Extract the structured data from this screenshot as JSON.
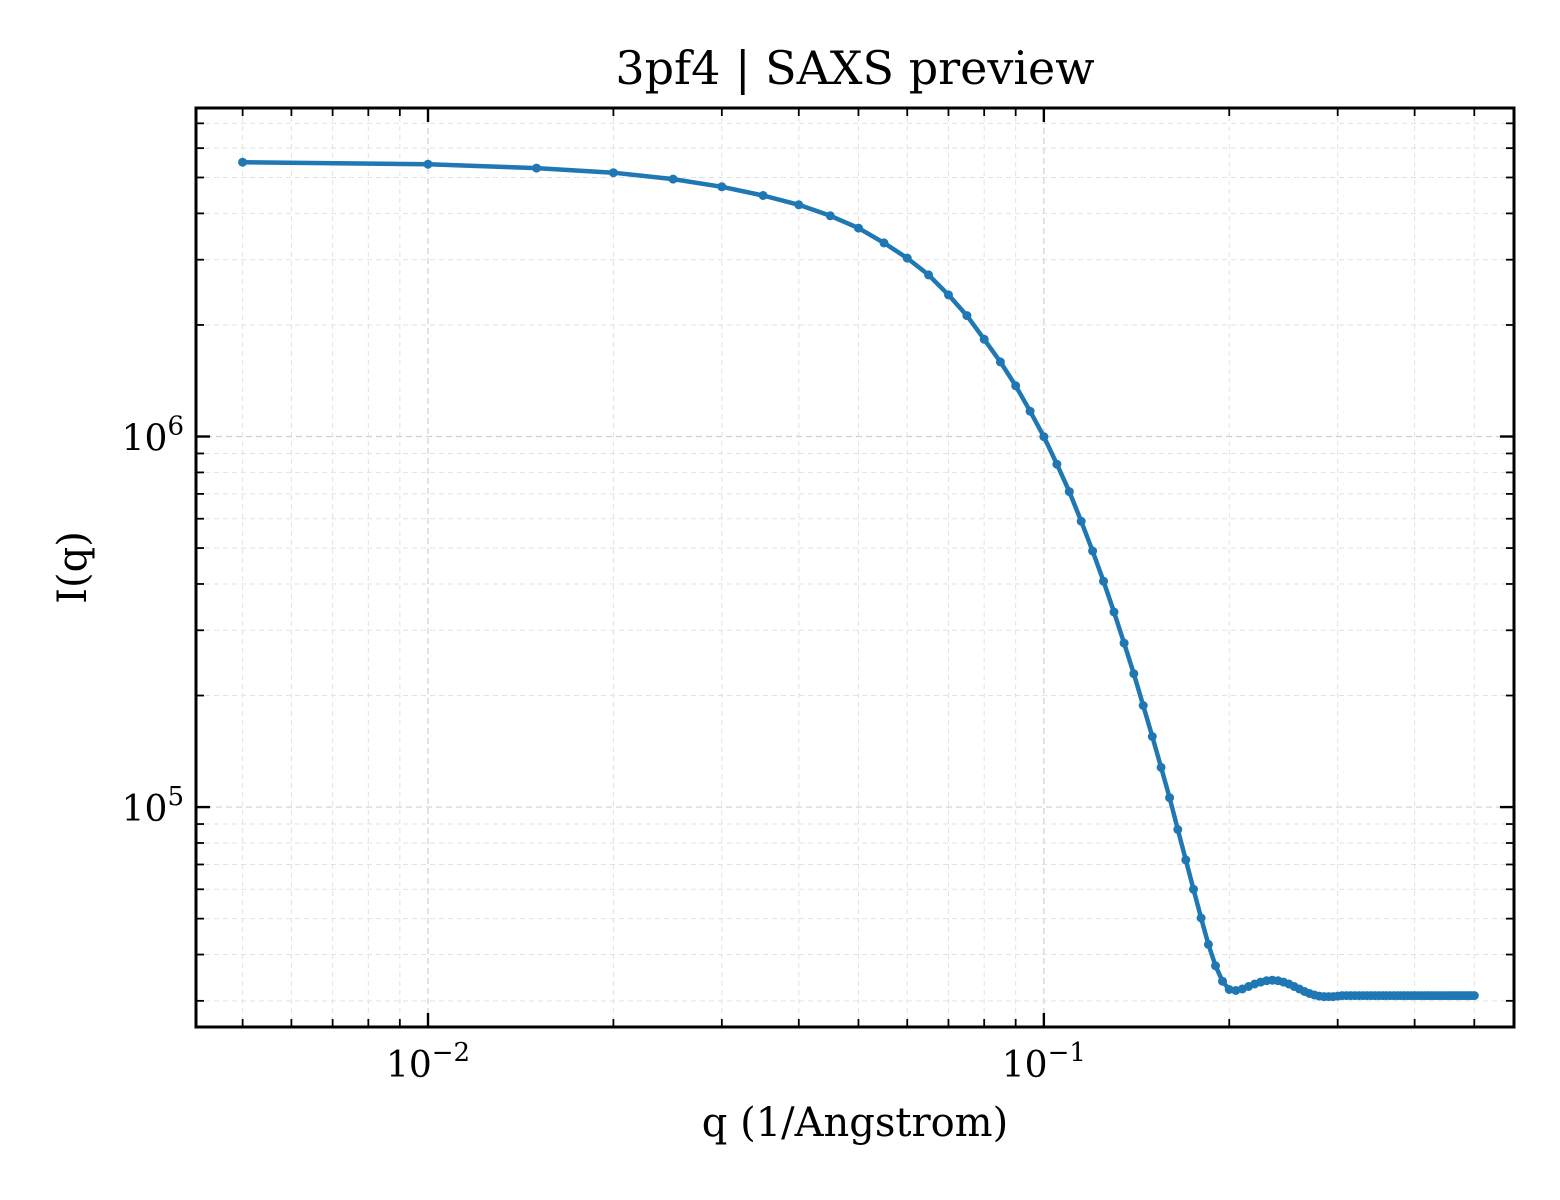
{
  "chart_data": {
    "type": "line",
    "title": "3pf4 | SAXS preview",
    "xlabel": "q (1/Angstrom)",
    "ylabel": "I(q)",
    "x_scale": "log",
    "y_scale": "log",
    "xlim": [
      0.0042,
      0.58
    ],
    "ylim": [
      25500,
      7700000
    ],
    "x_ticks": [
      {
        "value": 0.01,
        "base": "10",
        "exp": "−2"
      },
      {
        "value": 0.1,
        "base": "10",
        "exp": "−1"
      }
    ],
    "y_ticks": [
      {
        "value": 100000,
        "base": "10",
        "exp": "5"
      },
      {
        "value": 1000000,
        "base": "10",
        "exp": "6"
      }
    ],
    "grid": true,
    "legend": "none",
    "colors": {
      "series": "#1f77b4",
      "axes": "#000000",
      "grid": "#d0d0d0"
    },
    "series": [
      {
        "marker": "circle",
        "x": [
          0.005,
          0.01,
          0.015,
          0.02,
          0.025,
          0.03,
          0.035,
          0.04,
          0.045,
          0.05,
          0.055,
          0.06,
          0.065,
          0.07,
          0.075,
          0.08,
          0.085,
          0.09,
          0.095,
          0.1,
          0.105,
          0.11,
          0.115,
          0.12,
          0.125,
          0.13,
          0.135,
          0.14,
          0.145,
          0.15,
          0.155,
          0.16,
          0.165,
          0.17,
          0.175,
          0.18,
          0.185,
          0.19,
          0.195,
          0.2,
          0.205,
          0.21,
          0.215,
          0.22,
          0.225,
          0.23,
          0.235,
          0.24,
          0.245,
          0.25,
          0.255,
          0.26,
          0.265,
          0.27,
          0.275,
          0.28,
          0.285,
          0.29,
          0.295,
          0.3,
          0.305,
          0.31,
          0.315,
          0.32,
          0.325,
          0.33,
          0.335,
          0.34,
          0.345,
          0.35,
          0.355,
          0.36,
          0.365,
          0.37,
          0.375,
          0.38,
          0.385,
          0.39,
          0.395,
          0.4,
          0.405,
          0.41,
          0.415,
          0.42,
          0.425,
          0.43,
          0.435,
          0.44,
          0.445,
          0.45,
          0.455,
          0.46,
          0.465,
          0.47,
          0.475,
          0.48,
          0.485,
          0.49,
          0.495,
          0.5
        ],
        "y": [
          5500000,
          5430000,
          5300000,
          5150000,
          4950000,
          4720000,
          4470000,
          4220000,
          3940000,
          3650000,
          3330000,
          3030000,
          2730000,
          2410000,
          2120000,
          1830000,
          1590000,
          1370000,
          1170000,
          999000,
          842000,
          710000,
          591000,
          491000,
          407000,
          336000,
          277000,
          229000,
          188000,
          155000,
          128000,
          106000,
          87000,
          72000,
          60000,
          50200,
          42600,
          37300,
          33900,
          32200,
          32000,
          32300,
          32800,
          33300,
          33700,
          34000,
          34100,
          34000,
          33700,
          33300,
          32800,
          32300,
          31800,
          31400,
          31100,
          30900,
          30800,
          30800,
          30800,
          30900,
          31000,
          31000,
          31000,
          31000,
          31000,
          31000,
          31000,
          31000,
          31000,
          31000,
          31000,
          31000,
          31000,
          31000,
          31000,
          31000,
          31000,
          31000,
          31000,
          31000,
          31000,
          31000,
          31000,
          31000,
          31000,
          31000,
          31000,
          31000,
          31000,
          31000,
          31000,
          31000,
          31000,
          31000,
          31000,
          31000,
          31000,
          31000,
          31000,
          31000
        ]
      }
    ]
  }
}
